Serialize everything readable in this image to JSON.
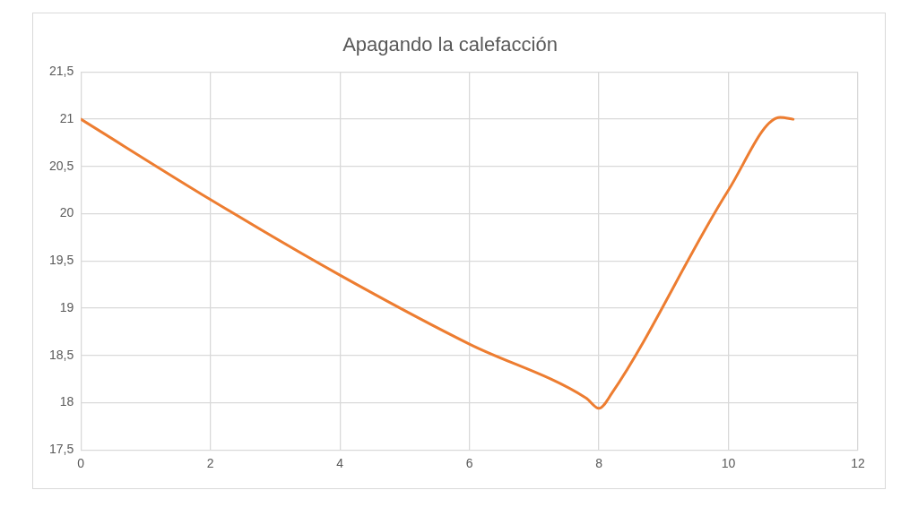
{
  "chart_data": {
    "type": "line",
    "title": "Apagando la calefacción",
    "x": [
      0,
      2,
      4,
      6,
      7.8,
      8,
      8.2,
      10,
      10.8,
      11
    ],
    "series": [
      {
        "color": "#ed7d31",
        "values": [
          21,
          20.15,
          19.35,
          18.62,
          18.05,
          17.94,
          18.1,
          20.25,
          21.02,
          21
        ]
      }
    ],
    "xlim": [
      0,
      12
    ],
    "xticks": [
      0,
      2,
      4,
      6,
      8,
      10,
      12
    ],
    "ylim": [
      17.5,
      21.5
    ],
    "yticks": [
      {
        "value": 17.5,
        "label": "17,5"
      },
      18,
      {
        "value": 18.5,
        "label": "18,5"
      },
      19,
      {
        "value": 19.5,
        "label": "19,5"
      },
      20,
      {
        "value": 20.5,
        "label": "20,5"
      },
      21,
      {
        "value": 21.5,
        "label": "21,5"
      }
    ],
    "grid": true,
    "legend": false,
    "marker": "none",
    "line_style": "solid"
  }
}
